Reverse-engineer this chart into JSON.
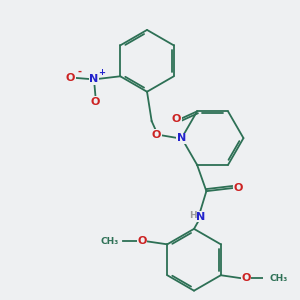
{
  "background_color": "#eef0f2",
  "bond_color": "#2d7055",
  "atom_colors": {
    "N": "#2222cc",
    "O": "#cc2222",
    "H": "#999999",
    "C": "#2d7055"
  },
  "figsize": [
    3.0,
    3.0
  ],
  "dpi": 100
}
